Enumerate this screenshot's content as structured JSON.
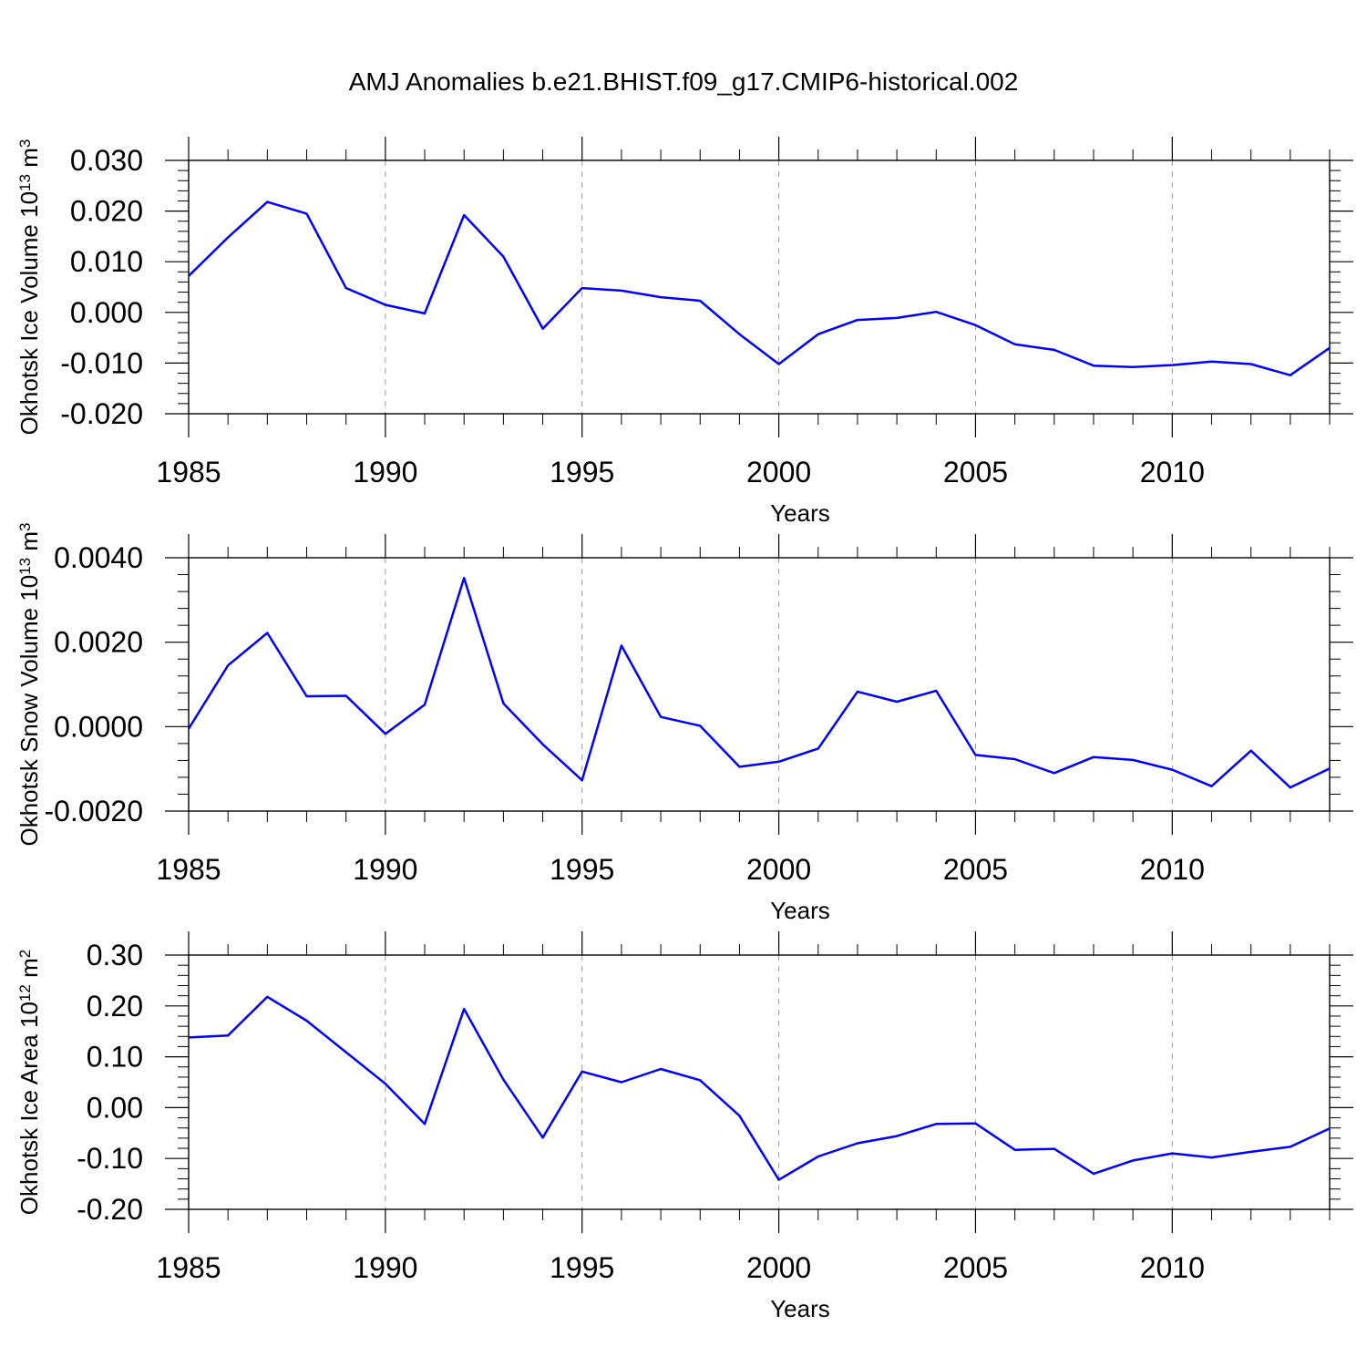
{
  "figure": {
    "title": "AMJ Anomalies b.e21.BHIST.f09_g17.CMIP6-historical.002"
  },
  "colors": {
    "series_line": "#0000ff",
    "frame": "#000000",
    "gridline": "#999999",
    "background": "#ffffff"
  },
  "chart_data": [
    {
      "type": "line",
      "ylabel": "Okhotsk Ice Volume 10¹³ m³",
      "ylabel_parts": {
        "base": "Okhotsk Ice Volume 10",
        "exp1": "13",
        "mid": " m",
        "exp2": "3"
      },
      "xlabel": "Years",
      "xlim": [
        1985,
        2014
      ],
      "ylim": [
        -0.02,
        0.03
      ],
      "x_ticks": [
        1985,
        1990,
        1995,
        2000,
        2005,
        2010
      ],
      "x_tick_labels": [
        "1985",
        "1990",
        "1995",
        "2000",
        "2005",
        "2010"
      ],
      "y_ticks": [
        -0.02,
        -0.01,
        0.0,
        0.01,
        0.02,
        0.03
      ],
      "y_tick_labels": [
        "-0.020",
        "-0.010",
        "0.000",
        "0.010",
        "0.020",
        "0.030"
      ],
      "grid": "vertical dashed at major x ticks",
      "x": [
        1985,
        1986,
        1987,
        1988,
        1989,
        1990,
        1991,
        1992,
        1993,
        1994,
        1995,
        1996,
        1997,
        1998,
        1999,
        2000,
        2001,
        2002,
        2003,
        2004,
        2005,
        2006,
        2007,
        2008,
        2009,
        2010,
        2011,
        2012,
        2013,
        2014
      ],
      "values": [
        0.0072,
        0.0148,
        0.0218,
        0.0195,
        0.0048,
        0.0015,
        -0.0002,
        0.0192,
        0.011,
        -0.0032,
        0.0048,
        0.0043,
        0.003,
        0.0023,
        -0.0043,
        -0.0102,
        -0.0043,
        -0.0015,
        -0.0011,
        0.0001,
        -0.0025,
        -0.0063,
        -0.0074,
        -0.0105,
        -0.0108,
        -0.0104,
        -0.0097,
        -0.0102,
        -0.0124,
        -0.007
      ]
    },
    {
      "type": "line",
      "ylabel": "Okhotsk Snow Volume 10¹³ m³",
      "ylabel_parts": {
        "base": "Okhotsk Snow Volume 10",
        "exp1": "13",
        "mid": " m",
        "exp2": "3"
      },
      "xlabel": "Years",
      "xlim": [
        1985,
        2014
      ],
      "ylim": [
        -0.002,
        0.004
      ],
      "x_ticks": [
        1985,
        1990,
        1995,
        2000,
        2005,
        2010
      ],
      "x_tick_labels": [
        "1985",
        "1990",
        "1995",
        "2000",
        "2005",
        "2010"
      ],
      "y_ticks": [
        -0.002,
        0.0,
        0.002,
        0.004
      ],
      "y_tick_labels": [
        "-0.0020",
        "0.0000",
        "0.0020",
        "0.0040"
      ],
      "grid": "vertical dashed at major x ticks",
      "x": [
        1985,
        1986,
        1987,
        1988,
        1989,
        1990,
        1991,
        1992,
        1993,
        1994,
        1995,
        1996,
        1997,
        1998,
        1999,
        2000,
        2001,
        2002,
        2003,
        2004,
        2005,
        2006,
        2007,
        2008,
        2009,
        2010,
        2011,
        2012,
        2013,
        2014
      ],
      "values": [
        -5e-05,
        0.00145,
        0.00222,
        0.00072,
        0.00073,
        -0.00017,
        0.00052,
        0.00352,
        0.00055,
        -0.00042,
        -0.00127,
        0.00192,
        0.00023,
        2e-05,
        -0.00095,
        -0.00083,
        -0.00052,
        0.00083,
        0.00059,
        0.00085,
        -0.00067,
        -0.00077,
        -0.0011,
        -0.00072,
        -0.00079,
        -0.00102,
        -0.00141,
        -0.00057,
        -0.00144,
        -0.00099
      ]
    },
    {
      "type": "line",
      "ylabel": "Okhotsk Ice Area 10¹² m²",
      "ylabel_parts": {
        "base": "Okhotsk Ice Area 10",
        "exp1": "12",
        "mid": " m",
        "exp2": "2"
      },
      "xlabel": "Years",
      "xlim": [
        1985,
        2014
      ],
      "ylim": [
        -0.2,
        0.3
      ],
      "x_ticks": [
        1985,
        1990,
        1995,
        2000,
        2005,
        2010
      ],
      "x_tick_labels": [
        "1985",
        "1990",
        "1995",
        "2000",
        "2005",
        "2010"
      ],
      "y_ticks": [
        -0.2,
        -0.1,
        0.0,
        0.1,
        0.2,
        0.3
      ],
      "y_tick_labels": [
        "-0.20",
        "-0.10",
        "0.00",
        "0.10",
        "0.20",
        "0.30"
      ],
      "grid": "vertical dashed at major x ticks",
      "x": [
        1985,
        1986,
        1987,
        1988,
        1989,
        1990,
        1991,
        1992,
        1993,
        1994,
        1995,
        1996,
        1997,
        1998,
        1999,
        2000,
        2001,
        2002,
        2003,
        2004,
        2005,
        2006,
        2007,
        2008,
        2009,
        2010,
        2011,
        2012,
        2013,
        2014
      ],
      "values": [
        0.138,
        0.142,
        0.218,
        0.171,
        0.109,
        0.047,
        -0.032,
        0.194,
        0.055,
        -0.059,
        0.071,
        0.05,
        0.076,
        0.054,
        -0.016,
        -0.142,
        -0.096,
        -0.07,
        -0.056,
        -0.032,
        -0.031,
        -0.083,
        -0.081,
        -0.13,
        -0.104,
        -0.09,
        -0.098,
        -0.087,
        -0.077,
        -0.041
      ]
    }
  ]
}
